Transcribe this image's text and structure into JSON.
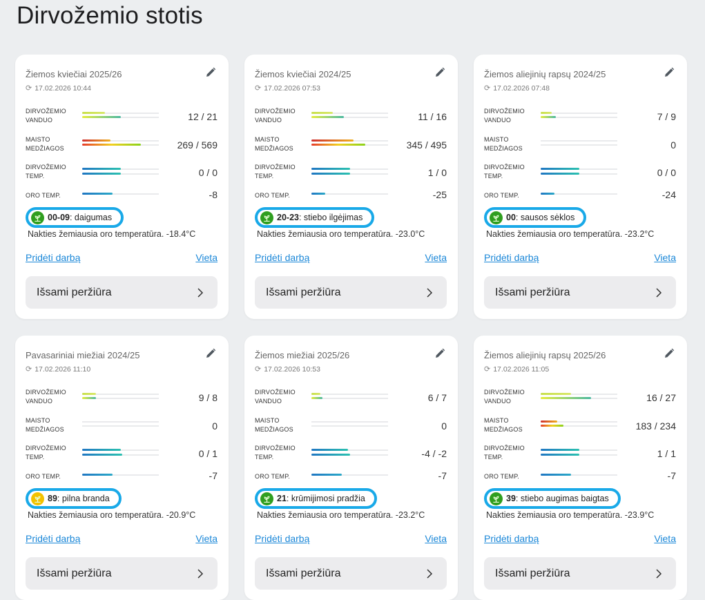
{
  "page": {
    "title": "Dirvožemio stotis"
  },
  "labels": {
    "soil_water": "DIRVOŽEMIO VANDUO",
    "nutrients": "MAISTO MEDŽIAGOS",
    "soil_temp": "DIRVOŽEMIO TEMP.",
    "air_temp": "ORO TEMP.",
    "add_work": "Pridėti darbą",
    "location": "Vieta",
    "details": "Išsami peržiūra"
  },
  "icons": {
    "edit": "pencil-icon",
    "refresh": "refresh-icon",
    "stage": "sprout-icon",
    "chevron": "chevron-right-icon"
  },
  "colors": {
    "stage_outline": "#19a9e8",
    "link": "#1a87d8",
    "stage_green": "#2f9e1f",
    "stage_yellow": "#f2c200"
  },
  "cards": [
    {
      "title": "Žiemos kviečiai 2025/26",
      "updated": "17.02.2026 10:44",
      "soil_water": "12 / 21",
      "nutrients": "269 / 569",
      "soil_temp": "0 / 0",
      "air_temp": "-8",
      "stage_code": "00-09",
      "stage_name": ": daigumas",
      "stage_color": "green",
      "night_text": "Nakties žemiausia oro temperatūra. -18.4°C",
      "bar_levels": {
        "water": [
          0.3,
          0.5
        ],
        "nutrients": [
          0.37,
          0.77
        ],
        "soil_temp": [
          0.5,
          0.5
        ],
        "air": [
          0.4
        ]
      }
    },
    {
      "title": "Žiemos kviečiai 2024/25",
      "updated": "17.02.2026 07:53",
      "soil_water": "11 / 16",
      "nutrients": "345 / 495",
      "soil_temp": "1 / 0",
      "air_temp": "-25",
      "stage_code": "20-23",
      "stage_name": ": stiebo ilgėjimas",
      "stage_color": "green",
      "night_text": "Nakties žemiausia oro temperatūra. -23.0°C",
      "bar_levels": {
        "water": [
          0.28,
          0.42
        ],
        "nutrients": [
          0.55,
          0.7
        ],
        "soil_temp": [
          0.5,
          0.5
        ],
        "air": [
          0.18
        ]
      }
    },
    {
      "title": "Žiemos aliejinių rapsų 2024/25",
      "updated": "17.02.2026 07:48",
      "soil_water": "7 / 9",
      "nutrients": "0",
      "soil_temp": "0 / 0",
      "air_temp": "-24",
      "stage_code": "00",
      "stage_name": ": sausos sėklos",
      "stage_color": "green",
      "night_text": "Nakties žemiausia oro temperatūra. -23.2°C",
      "bar_levels": {
        "water": [
          0.14,
          0.2
        ],
        "nutrients": [],
        "soil_temp": [
          0.5,
          0.5
        ],
        "air": [
          0.18
        ]
      }
    },
    {
      "title": "Pavasariniai miežiai 2024/25",
      "updated": "17.02.2026 11:10",
      "soil_water": "9 / 8",
      "nutrients": "0",
      "soil_temp": "0 / 1",
      "air_temp": "-7",
      "stage_code": "89",
      "stage_name": ": pilna branda",
      "stage_color": "yellow",
      "night_text": "Nakties žemiausia oro temperatūra. -20.9°C",
      "bar_levels": {
        "water": [
          0.18,
          0.18
        ],
        "nutrients": [],
        "soil_temp": [
          0.5,
          0.52
        ],
        "air": [
          0.4
        ]
      }
    },
    {
      "title": "Žiemos miežiai 2025/26",
      "updated": "17.02.2026 10:53",
      "soil_water": "6 / 7",
      "nutrients": "0",
      "soil_temp": "-4 / -2",
      "air_temp": "-7",
      "stage_code": "21",
      "stage_name": ": krūmijimosi pradžia",
      "stage_color": "green",
      "night_text": "Nakties žemiausia oro temperatūra. -23.2°C",
      "bar_levels": {
        "water": [
          0.12,
          0.14
        ],
        "nutrients": [],
        "soil_temp": [
          0.48,
          0.5
        ],
        "air": [
          0.4
        ]
      }
    },
    {
      "title": "Žiemos aliejinių rapsų 2025/26",
      "updated": "17.02.2026 11:05",
      "soil_water": "16 / 27",
      "nutrients": "183 / 234",
      "soil_temp": "1 / 1",
      "air_temp": "-7",
      "stage_code": "39",
      "stage_name": ": stiebo augimas baigtas",
      "stage_color": "green",
      "night_text": "Nakties žemiausia oro temperatūra. -23.9°C",
      "bar_levels": {
        "water": [
          0.4,
          0.66
        ],
        "nutrients": [
          0.22,
          0.3
        ],
        "soil_temp": [
          0.5,
          0.5
        ],
        "air": [
          0.4
        ]
      }
    }
  ]
}
